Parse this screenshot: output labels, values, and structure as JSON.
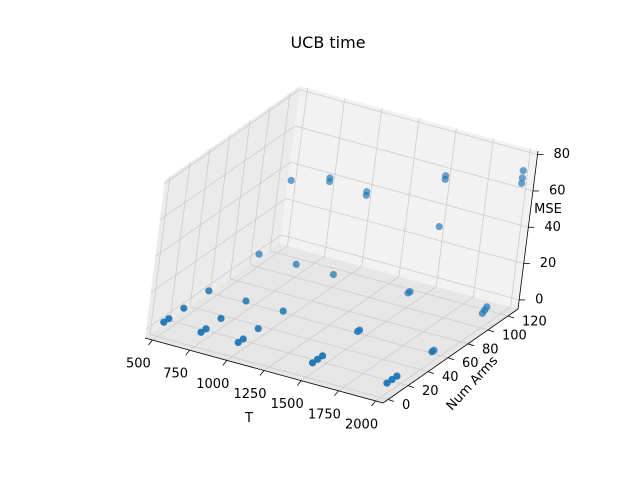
{
  "chart_data": {
    "type": "scatter",
    "projection": "3d",
    "title": "UCB time",
    "xlabel": "T",
    "ylabel": "Num Arms",
    "zlabel": "MSE",
    "xlim": [
      450,
      2050
    ],
    "ylim": [
      -5,
      130
    ],
    "zlim": [
      -5,
      82
    ],
    "xticks": [
      500,
      750,
      1000,
      1250,
      1500,
      1750,
      2000
    ],
    "yticks": [
      0,
      20,
      40,
      60,
      80,
      100,
      120
    ],
    "zticks": [
      0,
      20,
      40,
      60,
      80
    ],
    "grid": true,
    "marker_color": "#1f77b4",
    "series": [
      {
        "points": [
          {
            "x": 500,
            "y": 5,
            "z": 1
          },
          {
            "x": 500,
            "y": 10,
            "z": 1
          },
          {
            "x": 500,
            "y": 25,
            "z": 1
          },
          {
            "x": 500,
            "y": 50,
            "z": 1
          },
          {
            "x": 500,
            "y": 100,
            "z": 2
          },
          {
            "x": 750,
            "y": 5,
            "z": 1
          },
          {
            "x": 750,
            "y": 10,
            "z": 1
          },
          {
            "x": 750,
            "y": 25,
            "z": 1
          },
          {
            "x": 750,
            "y": 50,
            "z": 1
          },
          {
            "x": 750,
            "y": 100,
            "z": 2
          },
          {
            "x": 1000,
            "y": 5,
            "z": 1
          },
          {
            "x": 1000,
            "y": 10,
            "z": 1
          },
          {
            "x": 1000,
            "y": 25,
            "z": 1
          },
          {
            "x": 1000,
            "y": 50,
            "z": 1
          },
          {
            "x": 1000,
            "y": 100,
            "z": 2
          },
          {
            "x": 1500,
            "y": 5,
            "z": 1
          },
          {
            "x": 1500,
            "y": 10,
            "z": 1
          },
          {
            "x": 1500,
            "y": 15,
            "z": 1
          },
          {
            "x": 1500,
            "y": 50,
            "z": 1
          },
          {
            "x": 1500,
            "y": 52,
            "z": 1
          },
          {
            "x": 1500,
            "y": 100,
            "z": 3
          },
          {
            "x": 1500,
            "y": 102,
            "z": 3
          },
          {
            "x": 2000,
            "y": 5,
            "z": 1
          },
          {
            "x": 2000,
            "y": 10,
            "z": 1
          },
          {
            "x": 2000,
            "y": 15,
            "z": 1
          },
          {
            "x": 2000,
            "y": 50,
            "z": 1
          },
          {
            "x": 2000,
            "y": 52,
            "z": 1
          },
          {
            "x": 2000,
            "y": 100,
            "z": 3
          },
          {
            "x": 2000,
            "y": 102,
            "z": 4
          },
          {
            "x": 2000,
            "y": 104,
            "z": 5
          },
          {
            "x": 500,
            "y": 125,
            "z": 33
          },
          {
            "x": 750,
            "y": 125,
            "z": 38
          },
          {
            "x": 750,
            "y": 125,
            "z": 40
          },
          {
            "x": 1000,
            "y": 125,
            "z": 36
          },
          {
            "x": 1000,
            "y": 125,
            "z": 38
          },
          {
            "x": 1500,
            "y": 125,
            "z": 30
          },
          {
            "x": 1500,
            "y": 125,
            "z": 56
          },
          {
            "x": 1500,
            "y": 125,
            "z": 58
          },
          {
            "x": 2000,
            "y": 125,
            "z": 65
          },
          {
            "x": 2000,
            "y": 125,
            "z": 68
          },
          {
            "x": 2000,
            "y": 125,
            "z": 72
          }
        ]
      }
    ]
  }
}
